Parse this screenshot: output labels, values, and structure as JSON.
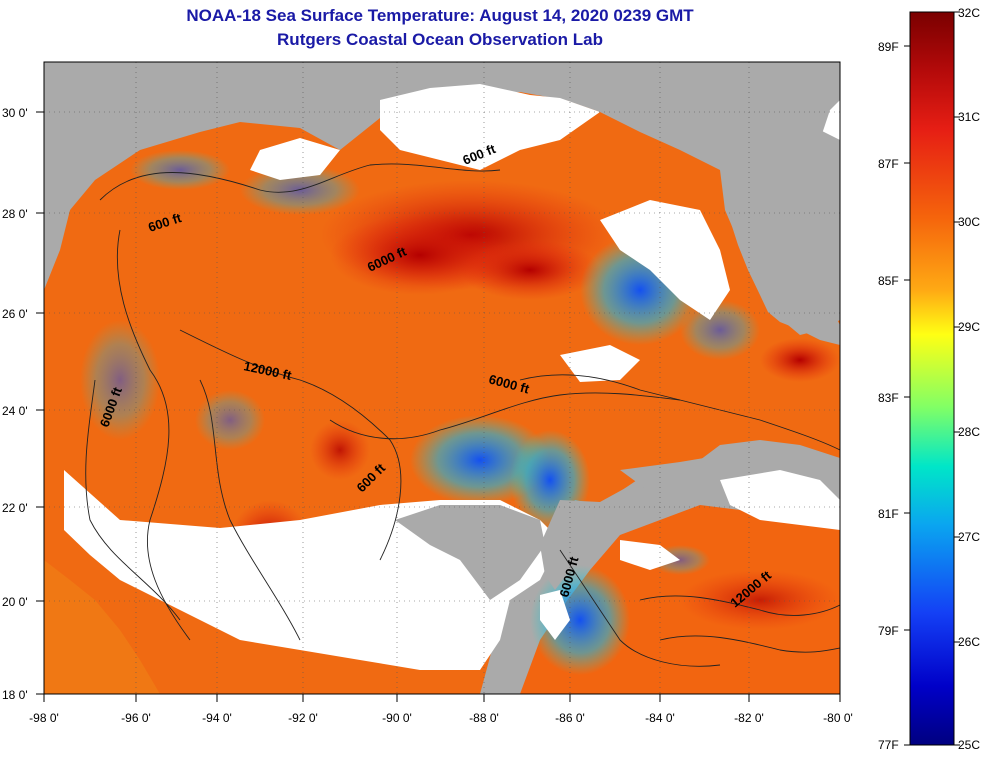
{
  "header": {
    "title": "NOAA-18 Sea Surface Temperature:  August 14, 2020 0239 GMT",
    "subtitle": "Rutgers Coastal Ocean Observation Lab"
  },
  "axes": {
    "lat_labels": [
      "30 0'",
      "28 0'",
      "26 0'",
      "24 0'",
      "22 0'",
      "20 0'",
      "18 0'"
    ],
    "lon_labels": [
      "-98 0'",
      "-96 0'",
      "-94 0'",
      "-92 0'",
      "-90 0'",
      "-88 0'",
      "-86 0'",
      "-84 0'",
      "-82 0'",
      "-80 0'"
    ]
  },
  "contours": {
    "labels": [
      "600 ft",
      "600 ft",
      "6000 ft",
      "12000 ft",
      "6000 ft",
      "6000 ft",
      "600 ft",
      "6000 ft",
      "12000 ft"
    ]
  },
  "colorbar": {
    "celsius_labels": [
      "32C",
      "31C",
      "30C",
      "29C",
      "28C",
      "27C",
      "26C",
      "25C"
    ],
    "fahrenheit_labels": [
      "89F",
      "87F",
      "85F",
      "83F",
      "81F",
      "79F",
      "77F"
    ],
    "colors": [
      "#7a0000",
      "#d11212",
      "#f0380c",
      "#f57a10",
      "#ffc21a",
      "#ffff1a",
      "#80ff66",
      "#00e6c8",
      "#0aa5f0",
      "#1440f5",
      "#0000b4",
      "#000080"
    ]
  },
  "colors": {
    "title": "#1a1aa6",
    "land": "#aaaaaa",
    "cloud": "#ffffff"
  }
}
